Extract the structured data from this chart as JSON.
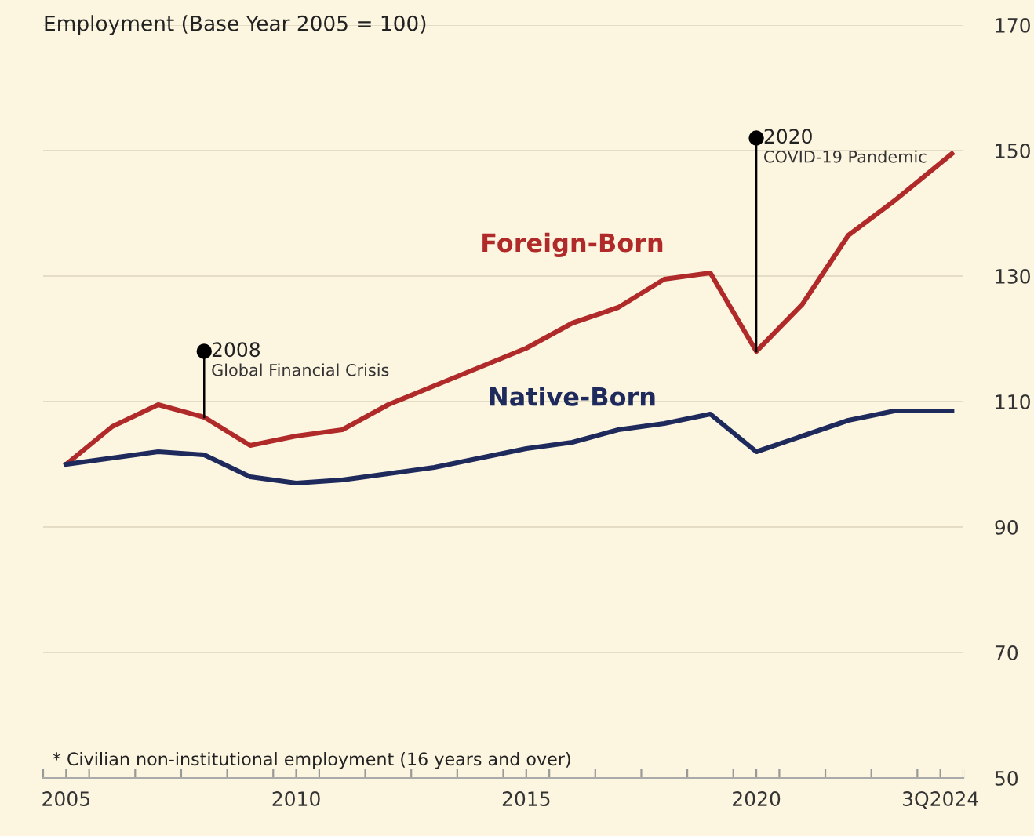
{
  "chart_data": {
    "type": "line",
    "title": "Employment (Base Year 2005 = 100)",
    "x": [
      2005,
      2006,
      2007,
      2008,
      2009,
      2010,
      2011,
      2012,
      2013,
      2014,
      2015,
      2016,
      2017,
      2018,
      2019,
      2020,
      2021,
      2022,
      2023,
      2024.25
    ],
    "series": [
      {
        "name": "Foreign-Born",
        "color": "#b02a2a",
        "values": [
          100,
          106,
          109.5,
          107.5,
          103,
          104.5,
          105.5,
          109.5,
          112.5,
          115.5,
          118.5,
          122.5,
          125,
          129.5,
          130.5,
          118,
          125.5,
          136.5,
          142,
          149.5
        ]
      },
      {
        "name": "Native-Born",
        "color": "#1f2a5c",
        "values": [
          100,
          101,
          102,
          101.5,
          98,
          97,
          97.5,
          98.5,
          99.5,
          101,
          102.5,
          103.5,
          105.5,
          106.5,
          108,
          102,
          104.5,
          107,
          108.5,
          108.5
        ]
      }
    ],
    "annotations": [
      {
        "text": "2008\nGlobal Financial Crisis",
        "x": 2008,
        "y": 118
      },
      {
        "text": "2020\nCOVID-19 Pandemic",
        "x": 2020,
        "y": 152
      },
      "* Civilian non-institutional employment (16 years and over)"
    ],
    "xlim": [
      2004.5,
      2024.5
    ],
    "xticks": [
      {
        "value": 2004.5,
        "label": null
      },
      {
        "value": 2005,
        "label": "2005"
      },
      {
        "value": 2005.5,
        "label": null
      },
      {
        "value": 2006.5,
        "label": null
      },
      {
        "value": 2007.5,
        "label": null
      },
      {
        "value": 2008.5,
        "label": null
      },
      {
        "value": 2009.5,
        "label": null
      },
      {
        "value": 2010,
        "label": "2010"
      },
      {
        "value": 2010.5,
        "label": null
      },
      {
        "value": 2011.5,
        "label": null
      },
      {
        "value": 2012.5,
        "label": null
      },
      {
        "value": 2013.5,
        "label": null
      },
      {
        "value": 2014.5,
        "label": null
      },
      {
        "value": 2015,
        "label": "2015"
      },
      {
        "value": 2015.5,
        "label": null
      },
      {
        "value": 2016.5,
        "label": null
      },
      {
        "value": 2017.5,
        "label": null
      },
      {
        "value": 2018.5,
        "label": null
      },
      {
        "value": 2019.5,
        "label": null
      },
      {
        "value": 2020,
        "label": "2020"
      },
      {
        "value": 2020.5,
        "label": null
      },
      {
        "value": 2021.5,
        "label": null
      },
      {
        "value": 2022.5,
        "label": null
      },
      {
        "value": 2023.5,
        "label": null
      },
      {
        "value": 2024,
        "label": "3Q2024"
      },
      {
        "value": 2024.5,
        "label": null
      }
    ],
    "ylim": [
      50,
      170
    ],
    "yticks": [
      50,
      70,
      90,
      110,
      130,
      150,
      170
    ],
    "grid": "y",
    "legend": false,
    "marker": "none",
    "line_style": "solid"
  }
}
